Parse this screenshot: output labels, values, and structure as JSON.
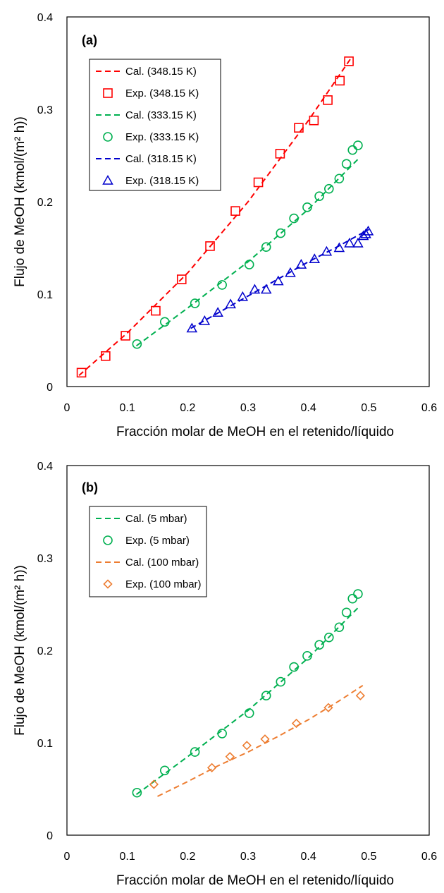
{
  "chart_data": [
    {
      "type": "line",
      "panel_label": "(a)",
      "xlabel": "Fracción molar de MeOH en el retenido/líquido",
      "ylabel": "Flujo de MeOH (kmol/(m² h))",
      "xlim": [
        0,
        0.6
      ],
      "ylim": [
        0,
        0.4
      ],
      "xticks": [
        "0",
        "0.1",
        "0.2",
        "0.3",
        "0.4",
        "0.5",
        "0.6"
      ],
      "yticks": [
        "0",
        "0.1",
        "0.2",
        "0.3",
        "0.4"
      ],
      "grid": false,
      "legend_position": "top-left",
      "series": [
        {
          "name": "Cal. (348.15 K)",
          "kind": "line",
          "color": "#ff0000",
          "x": [
            0.02,
            0.1,
            0.2,
            0.3,
            0.4,
            0.47
          ],
          "y": [
            0.012,
            0.058,
            0.123,
            0.2,
            0.288,
            0.355
          ]
        },
        {
          "name": "Exp. (348.15 K)",
          "kind": "marker",
          "marker": "square",
          "color": "#ff0000",
          "x": [
            0.024,
            0.064,
            0.097,
            0.147,
            0.19,
            0.237,
            0.279,
            0.317,
            0.353,
            0.384,
            0.409,
            0.432,
            0.452,
            0.467
          ],
          "y": [
            0.015,
            0.033,
            0.055,
            0.082,
            0.116,
            0.152,
            0.19,
            0.221,
            0.252,
            0.28,
            0.288,
            0.31,
            0.331,
            0.352
          ]
        },
        {
          "name": "Cal. (333.15 K)",
          "kind": "line",
          "color": "#00b050",
          "x": [
            0.115,
            0.2,
            0.3,
            0.4,
            0.485
          ],
          "y": [
            0.044,
            0.085,
            0.135,
            0.192,
            0.248
          ]
        },
        {
          "name": "Exp. (333.15 K)",
          "kind": "marker",
          "marker": "circle",
          "color": "#00b050",
          "x": [
            0.116,
            0.162,
            0.212,
            0.257,
            0.302,
            0.33,
            0.354,
            0.376,
            0.398,
            0.418,
            0.434,
            0.451,
            0.463,
            0.473,
            0.482
          ],
          "y": [
            0.046,
            0.07,
            0.09,
            0.11,
            0.132,
            0.151,
            0.166,
            0.182,
            0.194,
            0.206,
            0.214,
            0.225,
            0.241,
            0.256,
            0.261
          ]
        },
        {
          "name": "Cal. (318.15 K)",
          "kind": "line",
          "color": "#0000cc",
          "x": [
            0.205,
            0.3,
            0.4,
            0.45,
            0.5
          ],
          "y": [
            0.063,
            0.098,
            0.135,
            0.152,
            0.17
          ]
        },
        {
          "name": "Exp. (318.15 K)",
          "kind": "marker",
          "marker": "triangle",
          "color": "#0000cc",
          "x": [
            0.207,
            0.228,
            0.25,
            0.271,
            0.291,
            0.311,
            0.33,
            0.35,
            0.37,
            0.388,
            0.41,
            0.43,
            0.451,
            0.468,
            0.482,
            0.491,
            0.495,
            0.499
          ],
          "y": [
            0.063,
            0.071,
            0.08,
            0.089,
            0.097,
            0.105,
            0.105,
            0.114,
            0.123,
            0.132,
            0.138,
            0.146,
            0.15,
            0.155,
            0.155,
            0.163,
            0.165,
            0.168
          ]
        }
      ]
    },
    {
      "type": "line",
      "panel_label": "(b)",
      "xlabel": "Fracción molar de MeOH en el retenido/líquido",
      "ylabel": "Flujo de MeOH (kmol/(m² h))",
      "xlim": [
        0,
        0.6
      ],
      "ylim": [
        0,
        0.4
      ],
      "xticks": [
        "0",
        "0.1",
        "0.2",
        "0.3",
        "0.4",
        "0.5",
        "0.6"
      ],
      "yticks": [
        "0",
        "0.1",
        "0.2",
        "0.3",
        "0.4"
      ],
      "grid": false,
      "legend_position": "top-left",
      "series": [
        {
          "name": "Cal. (5 mbar)",
          "kind": "line",
          "color": "#00b050",
          "x": [
            0.115,
            0.2,
            0.3,
            0.4,
            0.485
          ],
          "y": [
            0.044,
            0.085,
            0.135,
            0.192,
            0.248
          ]
        },
        {
          "name": "Exp. (5 mbar)",
          "kind": "marker",
          "marker": "circle",
          "color": "#00b050",
          "x": [
            0.116,
            0.162,
            0.212,
            0.257,
            0.302,
            0.33,
            0.354,
            0.376,
            0.398,
            0.418,
            0.434,
            0.451,
            0.463,
            0.473,
            0.482
          ],
          "y": [
            0.046,
            0.07,
            0.09,
            0.11,
            0.132,
            0.151,
            0.166,
            0.182,
            0.194,
            0.206,
            0.214,
            0.225,
            0.241,
            0.256,
            0.261
          ]
        },
        {
          "name": "Cal. (100 mbar)",
          "kind": "line",
          "color": "#ed7d31",
          "x": [
            0.15,
            0.2,
            0.25,
            0.3,
            0.35,
            0.4,
            0.45,
            0.49
          ],
          "y": [
            0.042,
            0.058,
            0.075,
            0.09,
            0.107,
            0.125,
            0.145,
            0.162
          ]
        },
        {
          "name": "Exp. (100 mbar)",
          "kind": "marker",
          "marker": "diamond",
          "color": "#ed7d31",
          "x": [
            0.144,
            0.24,
            0.27,
            0.298,
            0.328,
            0.38,
            0.433,
            0.486
          ],
          "y": [
            0.055,
            0.073,
            0.085,
            0.097,
            0.104,
            0.121,
            0.138,
            0.151
          ]
        }
      ]
    }
  ]
}
